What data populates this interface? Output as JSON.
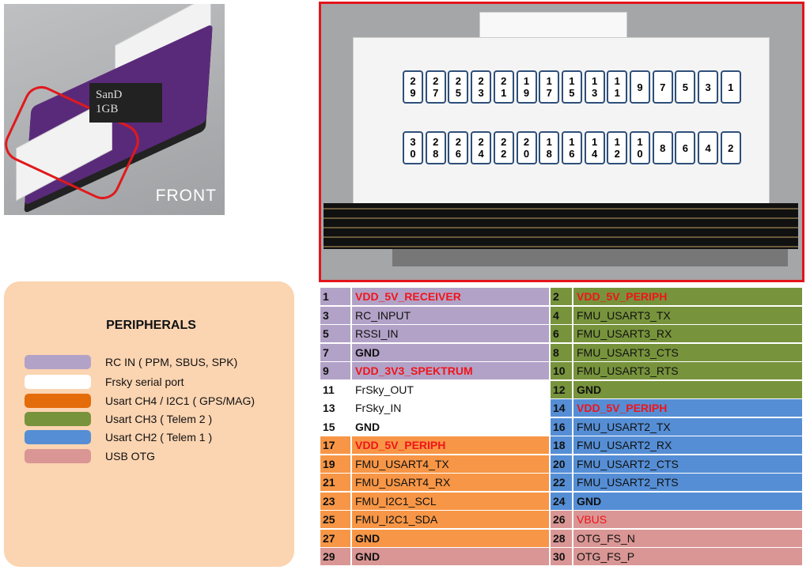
{
  "photo": {
    "label": "FRONT",
    "sd_text": "SanD\n1GB"
  },
  "connector": {
    "top_pins": [
      "29",
      "27",
      "25",
      "23",
      "21",
      "19",
      "17",
      "15",
      "13",
      "11",
      "9",
      "7",
      "5",
      "3",
      "1"
    ],
    "bottom_pins": [
      "30",
      "28",
      "26",
      "24",
      "22",
      "20",
      "18",
      "16",
      "14",
      "12",
      "10",
      "8",
      "6",
      "4",
      "2"
    ]
  },
  "legend": {
    "title": "PERIPHERALS",
    "items": [
      {
        "label": "RC IN ( PPM, SBUS, SPK)",
        "color": "#b3a2c7"
      },
      {
        "label": "Frsky serial port",
        "color": "#ffffff"
      },
      {
        "label": "Usart CH4 / I2C1 ( GPS/MAG)",
        "color": "#e46c0a"
      },
      {
        "label": "Usart CH3 ( Telem  2 )",
        "color": "#77933c"
      },
      {
        "label": "Usart CH2 ( Telem  1 )",
        "color": "#558ed5"
      },
      {
        "label": "USB OTG",
        "color": "#d99694"
      }
    ]
  },
  "colors": {
    "rc": "#b3a2c7",
    "frsky": "#ffffff",
    "usart4": "#f79646",
    "usart3": "#77933c",
    "usart2": "#558ed5",
    "usb": "#d99694"
  },
  "pinout": [
    [
      {
        "num": "1",
        "label": "VDD_5V_RECEIVER",
        "group": "rc",
        "style": "red"
      },
      {
        "num": "2",
        "label": "VDD_5V_PERIPH",
        "group": "usart3",
        "style": "red"
      }
    ],
    [
      {
        "num": "3",
        "label": "RC_INPUT",
        "group": "rc",
        "style": ""
      },
      {
        "num": "4",
        "label": "FMU_USART3_TX",
        "group": "usart3",
        "style": ""
      }
    ],
    [
      {
        "num": "5",
        "label": "RSSI_IN",
        "group": "rc",
        "style": ""
      },
      {
        "num": "6",
        "label": "FMU_USART3_RX",
        "group": "usart3",
        "style": ""
      }
    ],
    [
      {
        "num": "7",
        "label": "GND",
        "group": "rc",
        "style": "bold"
      },
      {
        "num": "8",
        "label": "FMU_USART3_CTS",
        "group": "usart3",
        "style": ""
      }
    ],
    [
      {
        "num": "9",
        "label": "VDD_3V3_SPEKTRUM",
        "group": "rc",
        "style": "red"
      },
      {
        "num": "10",
        "label": "FMU_USART3_RTS",
        "group": "usart3",
        "style": ""
      }
    ],
    [
      {
        "num": "11",
        "label": "FrSky_OUT",
        "group": "frsky",
        "style": ""
      },
      {
        "num": "12",
        "label": "GND",
        "group": "usart3",
        "style": "bold"
      }
    ],
    [
      {
        "num": "13",
        "label": "FrSky_IN",
        "group": "frsky",
        "style": ""
      },
      {
        "num": "14",
        "label": "VDD_5V_PERIPH",
        "group": "usart2",
        "style": "red"
      }
    ],
    [
      {
        "num": "15",
        "label": "GND",
        "group": "frsky",
        "style": "bold"
      },
      {
        "num": "16",
        "label": "FMU_USART2_TX",
        "group": "usart2",
        "style": ""
      }
    ],
    [
      {
        "num": "17",
        "label": "VDD_5V_PERIPH",
        "group": "usart4",
        "style": "red"
      },
      {
        "num": "18",
        "label": "FMU_USART2_RX",
        "group": "usart2",
        "style": ""
      }
    ],
    [
      {
        "num": "19",
        "label": "FMU_USART4_TX",
        "group": "usart4",
        "style": ""
      },
      {
        "num": "20",
        "label": "FMU_USART2_CTS",
        "group": "usart2",
        "style": ""
      }
    ],
    [
      {
        "num": "21",
        "label": "FMU_USART4_RX",
        "group": "usart4",
        "style": ""
      },
      {
        "num": "22",
        "label": "FMU_USART2_RTS",
        "group": "usart2",
        "style": ""
      }
    ],
    [
      {
        "num": "23",
        "label": "FMU_I2C1_SCL",
        "group": "usart4",
        "style": ""
      },
      {
        "num": "24",
        "label": "GND",
        "group": "usart2",
        "style": "bold"
      }
    ],
    [
      {
        "num": "25",
        "label": "FMU_I2C1_SDA",
        "group": "usart4",
        "style": ""
      },
      {
        "num": "26",
        "label": "VBUS",
        "group": "usb",
        "style": "redn"
      }
    ],
    [
      {
        "num": "27",
        "label": "GND",
        "group": "usart4",
        "style": "bold"
      },
      {
        "num": "28",
        "label": "OTG_FS_N",
        "group": "usb",
        "style": ""
      }
    ],
    [
      {
        "num": "29",
        "label": "GND",
        "group": "usb",
        "style": "bold"
      },
      {
        "num": "30",
        "label": "OTG_FS_P",
        "group": "usb",
        "style": ""
      }
    ]
  ]
}
